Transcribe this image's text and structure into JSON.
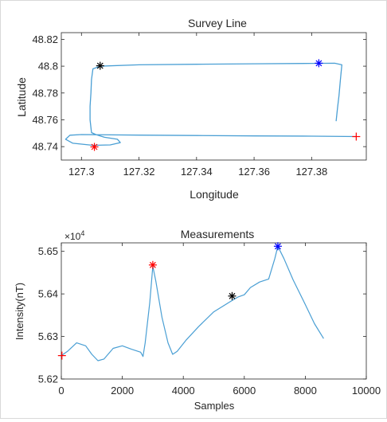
{
  "chart_data": [
    {
      "type": "line",
      "title": "Survey Line",
      "xlabel": "Longitude",
      "ylabel": "Latitude",
      "xlim": [
        127.293,
        127.399
      ],
      "ylim": [
        48.73,
        48.825
      ],
      "xticks": [
        "127.3",
        "127.32",
        "127.34",
        "127.36",
        "127.38"
      ],
      "xtick_values": [
        127.3,
        127.32,
        127.34,
        127.36,
        127.38
      ],
      "yticks": [
        "48.74",
        "48.76",
        "48.78",
        "48.8",
        "48.82"
      ],
      "ytick_values": [
        48.74,
        48.76,
        48.78,
        48.8,
        48.82
      ],
      "grid": false,
      "line_color": "#4a9fd4",
      "path": [
        [
          127.3955,
          48.7475
        ],
        [
          127.38,
          48.7478
        ],
        [
          127.36,
          48.748
        ],
        [
          127.34,
          48.7483
        ],
        [
          127.32,
          48.7486
        ],
        [
          127.305,
          48.7489
        ],
        [
          127.3,
          48.749
        ],
        [
          127.296,
          48.7485
        ],
        [
          127.2945,
          48.7455
        ],
        [
          127.297,
          48.7425
        ],
        [
          127.304,
          48.741
        ],
        [
          127.31,
          48.7413
        ],
        [
          127.3135,
          48.743
        ],
        [
          127.3125,
          48.7455
        ],
        [
          127.308,
          48.747
        ],
        [
          127.305,
          48.749
        ],
        [
          127.3035,
          48.7505
        ],
        [
          127.303,
          48.76
        ],
        [
          127.303,
          48.77
        ],
        [
          127.3033,
          48.78
        ],
        [
          127.3035,
          48.79
        ],
        [
          127.304,
          48.798
        ],
        [
          127.3065,
          48.8
        ],
        [
          127.32,
          48.801
        ],
        [
          127.34,
          48.8014
        ],
        [
          127.36,
          48.8018
        ],
        [
          127.38,
          48.8021
        ],
        [
          127.388,
          48.8022
        ],
        [
          127.3905,
          48.801
        ],
        [
          127.39,
          48.79
        ],
        [
          127.3895,
          48.778
        ],
        [
          127.389,
          48.769
        ],
        [
          127.3885,
          48.759
        ]
      ],
      "markers": [
        {
          "x": 127.3955,
          "y": 48.7475,
          "color": "#ff0000",
          "symbol": "+"
        },
        {
          "x": 127.3045,
          "y": 48.7398,
          "color": "#ff0000",
          "symbol": "*"
        },
        {
          "x": 127.3065,
          "y": 48.8003,
          "color": "#000000",
          "symbol": "*"
        },
        {
          "x": 127.3825,
          "y": 48.8022,
          "color": "#0000ff",
          "symbol": "*"
        }
      ]
    },
    {
      "type": "line",
      "title": "Measurements",
      "xlabel": "Samples",
      "ylabel": "Intensity(nT)",
      "exponent_label": "×10",
      "exponent_power": "4",
      "xlim": [
        0,
        10000
      ],
      "ylim": [
        5.62,
        5.652
      ],
      "xticks": [
        "0",
        "2000",
        "4000",
        "6000",
        "8000",
        "10000"
      ],
      "xtick_values": [
        0,
        2000,
        4000,
        6000,
        8000,
        10000
      ],
      "yticks": [
        "5.62",
        "5.63",
        "5.64",
        "5.65"
      ],
      "ytick_values": [
        5.62,
        5.63,
        5.64,
        5.65
      ],
      "grid": false,
      "line_color": "#4a9fd4",
      "x": [
        0,
        200,
        500,
        800,
        1000,
        1200,
        1400,
        1700,
        2000,
        2300,
        2600,
        2680,
        2750,
        2900,
        3000,
        3100,
        3300,
        3500,
        3650,
        3800,
        4100,
        4500,
        5000,
        5500,
        5800,
        6000,
        6200,
        6500,
        6800,
        7000,
        7100,
        7300,
        7600,
        8000,
        8300,
        8600
      ],
      "y": [
        5.6255,
        5.6265,
        5.6285,
        5.6278,
        5.6258,
        5.6243,
        5.6247,
        5.6272,
        5.6278,
        5.627,
        5.6263,
        5.6253,
        5.6285,
        5.638,
        5.6465,
        5.643,
        5.6345,
        5.6285,
        5.6258,
        5.6265,
        5.6292,
        5.6323,
        5.6358,
        5.638,
        5.6393,
        5.6398,
        5.6415,
        5.6428,
        5.6435,
        5.6483,
        5.6512,
        5.6483,
        5.6433,
        5.6375,
        5.633,
        5.6295
      ],
      "markers": [
        {
          "x": 20,
          "y": 5.6255,
          "color": "#ff0000",
          "symbol": "+"
        },
        {
          "x": 3000,
          "y": 5.6468,
          "color": "#ff0000",
          "symbol": "*"
        },
        {
          "x": 5600,
          "y": 5.6395,
          "color": "#000000",
          "symbol": "*"
        },
        {
          "x": 7100,
          "y": 5.6512,
          "color": "#0000ff",
          "symbol": "*"
        }
      ]
    }
  ]
}
